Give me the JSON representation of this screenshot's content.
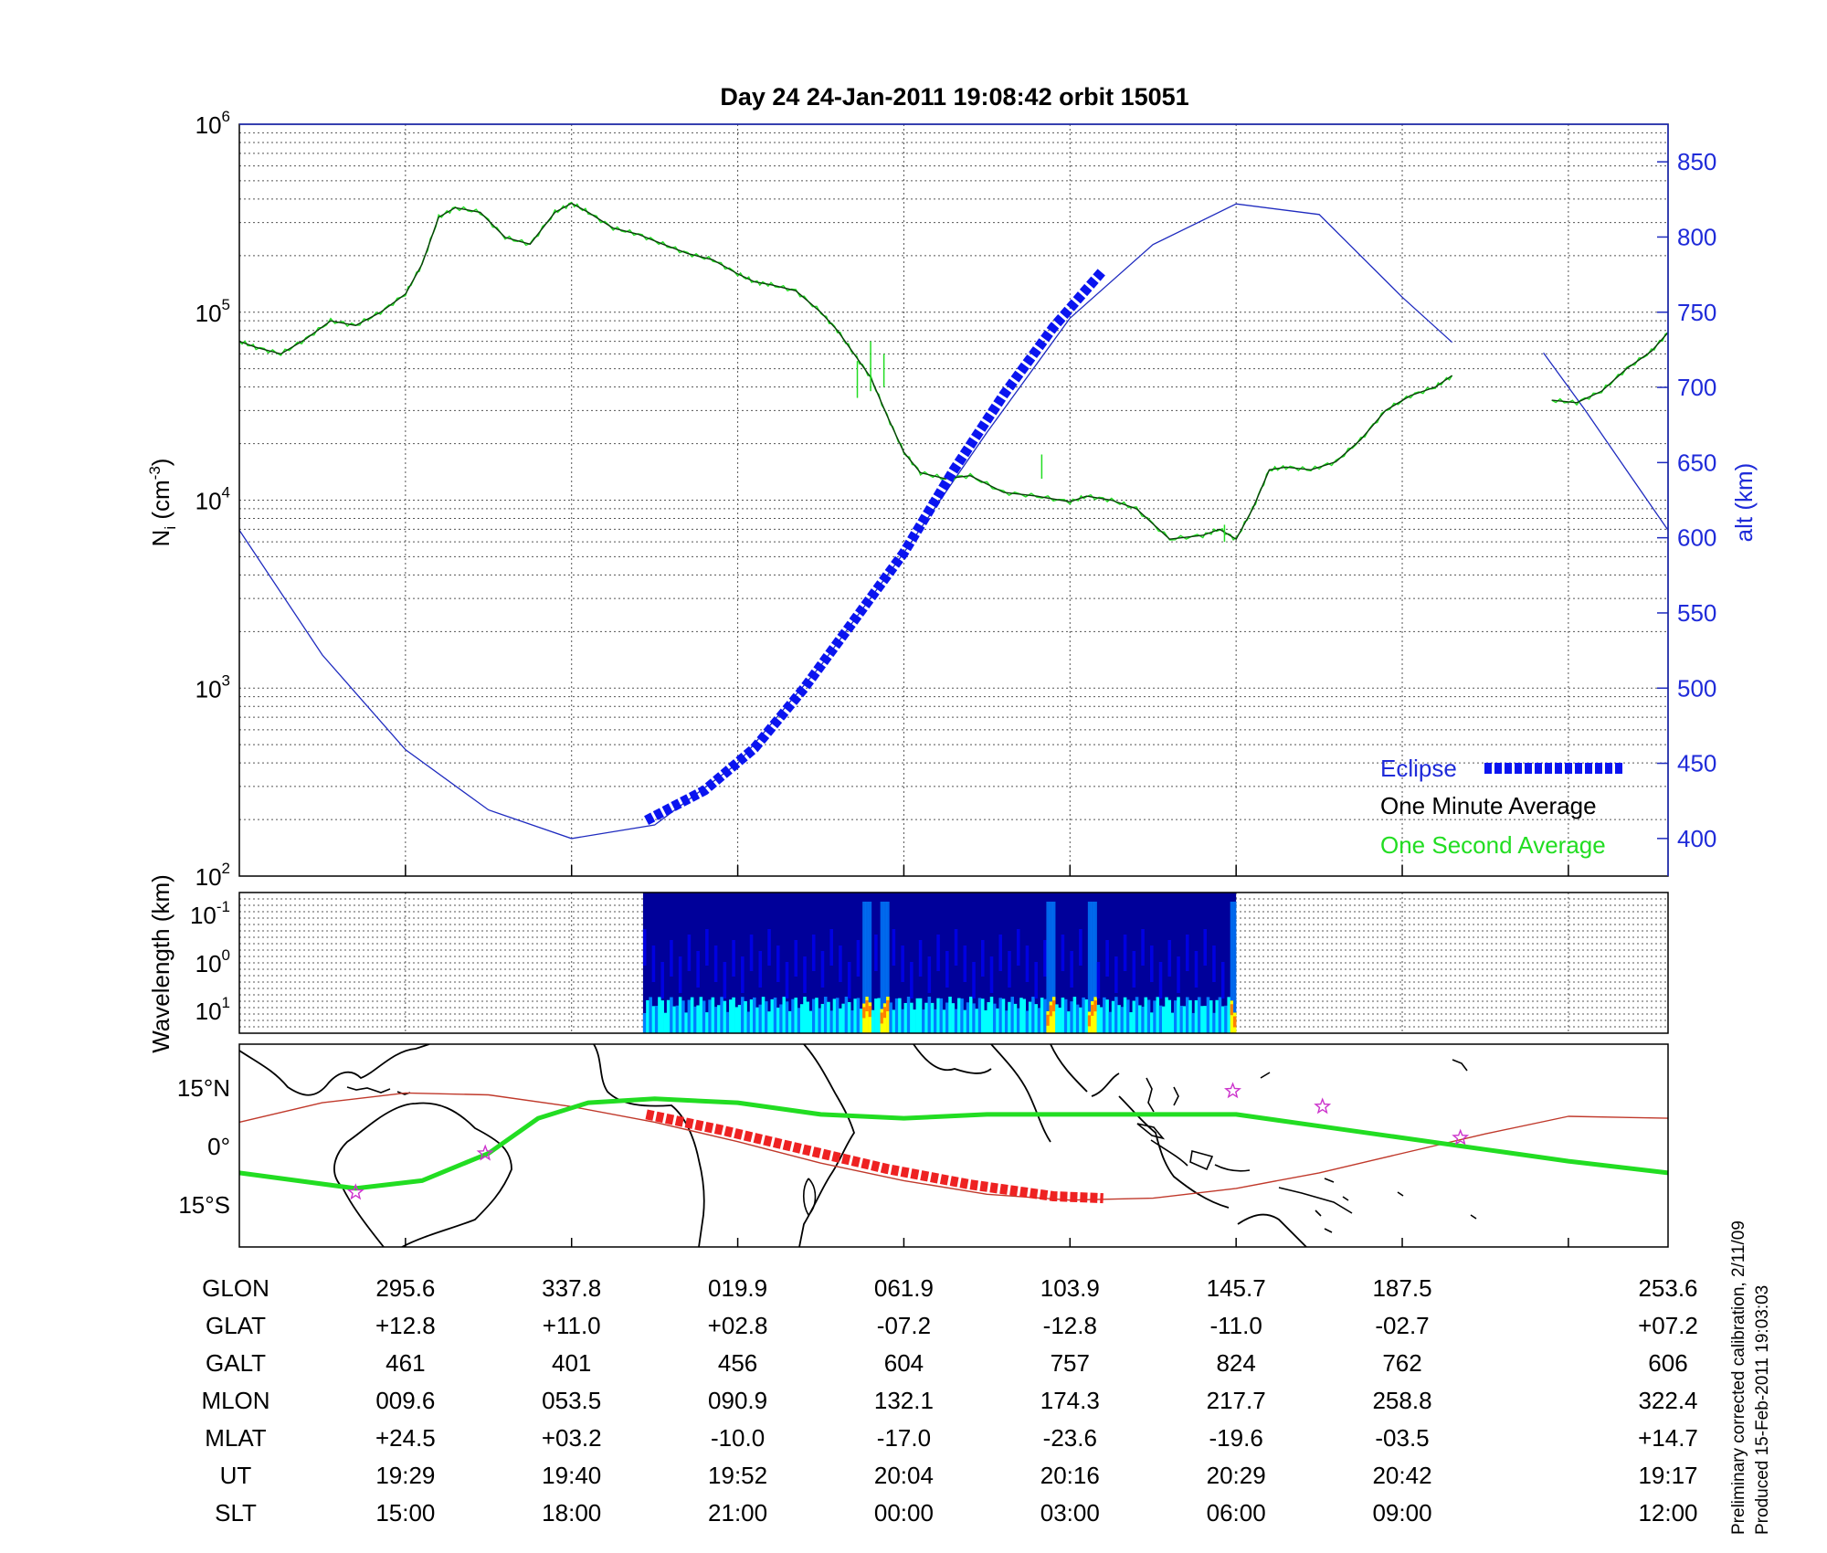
{
  "chart_data": [
    {
      "type": "line",
      "title": "Day 24  24-Jan-2011 19:08:42   orbit 15051",
      "ylabel": "N",
      "ylabel_sub": "i",
      "ylabel_unit": "(cm",
      "ylabel_unit_sup": "-3",
      "ylabel_unit_close": ")",
      "y2label": "alt (km)",
      "yscale": "log",
      "ylim": [
        100,
        1000000
      ],
      "yticks": [
        {
          "base": "10",
          "exp": "2"
        },
        {
          "base": "10",
          "exp": "3"
        },
        {
          "base": "10",
          "exp": "4"
        },
        {
          "base": "10",
          "exp": "5"
        },
        {
          "base": "10",
          "exp": "6"
        }
      ],
      "y2lim": [
        375,
        875
      ],
      "y2ticks": [
        "400",
        "450",
        "500",
        "550",
        "600",
        "650",
        "700",
        "750",
        "800",
        "850"
      ],
      "xlim": [
        0,
        8.6
      ],
      "grid": true,
      "legend": {
        "placement": "bottom-right",
        "entries": [
          "Eclipse",
          "One Minute Average",
          "One Second Average"
        ]
      },
      "colors": {
        "eclipse": "#0a14f0",
        "minute": "#0b3d0b",
        "second": "#22dd22",
        "altitude": "#1f2bbf"
      },
      "series": [
        {
          "name": "One Minute Average",
          "x": [
            0,
            0.1,
            0.25,
            0.4,
            0.55,
            0.7,
            0.85,
            1.0,
            1.1,
            1.2,
            1.3,
            1.45,
            1.6,
            1.75,
            1.9,
            2.0,
            2.1,
            2.25,
            2.4,
            2.55,
            2.7,
            2.85,
            3.0,
            3.1,
            3.2,
            3.35,
            3.5,
            3.6,
            3.7,
            3.8,
            3.9,
            4.0,
            4.1,
            4.25,
            4.4,
            4.6,
            4.8,
            5.0,
            5.1,
            5.25,
            5.4,
            5.6,
            5.8,
            5.9,
            6.0,
            6.1,
            6.2,
            6.3,
            6.45,
            6.6,
            6.75,
            6.9,
            7.05,
            7.2,
            7.3
          ],
          "y": [
            70000,
            65000,
            60000,
            72000,
            90000,
            85000,
            100000,
            125000,
            180000,
            320000,
            360000,
            340000,
            250000,
            230000,
            340000,
            380000,
            340000,
            280000,
            260000,
            230000,
            205000,
            190000,
            160000,
            145000,
            140000,
            130000,
            100000,
            80000,
            60000,
            45000,
            28000,
            18000,
            14000,
            13000,
            13500,
            11000,
            10500,
            9800,
            10500,
            10000,
            9000,
            6200,
            6500,
            7000,
            6200,
            9000,
            14500,
            15000,
            14500,
            16000,
            21000,
            30000,
            36000,
            40000,
            46000
          ]
        },
        {
          "name": "One Minute Average",
          "x": [
            7.9,
            8.05,
            8.2,
            8.35,
            8.5,
            8.6
          ],
          "y": [
            34000,
            33000,
            38000,
            50000,
            62000,
            78000
          ]
        },
        {
          "name": "altitude",
          "x": [
            0,
            0.5,
            1.0,
            1.5,
            2.0,
            2.5,
            3.0,
            3.5,
            4.0,
            4.5,
            5.0,
            5.5,
            6.0,
            6.5,
            7.0,
            7.3
          ],
          "y": [
            605,
            522,
            459,
            419,
            400,
            409,
            450,
            515,
            590,
            670,
            746,
            795,
            822,
            815,
            760,
            730
          ]
        },
        {
          "name": "altitude",
          "x": [
            7.85,
            8.1,
            8.35,
            8.6
          ],
          "y": [
            723,
            685,
            645,
            605
          ]
        },
        {
          "name": "Eclipse",
          "x": [
            2.45,
            2.8,
            3.1,
            3.4,
            3.7,
            4.0,
            4.3,
            4.6,
            4.9,
            5.2
          ],
          "y": [
            412,
            432,
            460,
            500,
            545,
            590,
            645,
            695,
            740,
            778
          ]
        }
      ]
    },
    {
      "type": "heatmap",
      "ylabel": "Wavelength (km)",
      "yticks": [
        {
          "base": "10",
          "exp": "-1"
        },
        {
          "base": "10",
          "exp": "0"
        },
        {
          "base": "10",
          "exp": "1"
        }
      ],
      "x_range": [
        2.43,
        6.0
      ],
      "colormap": [
        "#00008f",
        "#0000ff",
        "#0080ff",
        "#00ffff",
        "#ffff00",
        "#ff8000"
      ]
    },
    {
      "type": "line",
      "yticks": [
        "15°N",
        "0°",
        "15°S"
      ],
      "series": [
        {
          "name": "track",
          "x": [
            0,
            0.5,
            1.0,
            1.5,
            2.0,
            2.5,
            3.0,
            3.5,
            4.0,
            4.5,
            5.0,
            5.5,
            6.0,
            6.5,
            7.0,
            7.5,
            8.0,
            8.6
          ],
          "y": [
            6,
            11,
            13.5,
            13,
            10,
            6,
            1,
            -4.5,
            -9,
            -12.5,
            -14,
            -13.5,
            -11,
            -7,
            -2,
            3,
            7.5,
            7
          ]
        },
        {
          "name": "footprint",
          "x": [
            0,
            0.7,
            1.1,
            1.5,
            1.8,
            2.1,
            2.5,
            3.0,
            3.5,
            4.0,
            4.5,
            5.0,
            5.5,
            6.0,
            6.5,
            7.0,
            7.5,
            8.0,
            8.6
          ],
          "y": [
            -7,
            -11,
            -9,
            -2,
            7,
            11,
            12,
            11,
            8,
            7,
            8,
            8,
            8,
            8,
            5,
            2,
            -1,
            -4,
            -7
          ]
        },
        {
          "name": "Eclipse",
          "x": [
            2.45,
            2.9,
            3.4,
            3.9,
            4.4,
            4.9,
            5.2
          ],
          "y": [
            8,
            4,
            -1,
            -6,
            -10,
            -13,
            -13.5
          ]
        }
      ],
      "stars": [
        {
          "x": 0.7,
          "y": -12
        },
        {
          "x": 1.48,
          "y": -2
        },
        {
          "x": 5.98,
          "y": 14
        },
        {
          "x": 6.52,
          "y": 10
        },
        {
          "x": 7.35,
          "y": 2
        }
      ]
    }
  ],
  "table": {
    "row_labels": [
      "GLON",
      "GLAT",
      "GALT",
      "MLON",
      "MLAT",
      "UT",
      "SLT"
    ],
    "columns": [
      [
        "295.6",
        "+12.8",
        "461",
        "009.6",
        "+24.5",
        "19:29",
        "15:00"
      ],
      [
        "337.8",
        "+11.0",
        "401",
        "053.5",
        "+03.2",
        "19:40",
        "18:00"
      ],
      [
        "019.9",
        "+02.8",
        "456",
        "090.9",
        "-10.0",
        "19:52",
        "21:00"
      ],
      [
        "061.9",
        "-07.2",
        "604",
        "132.1",
        "-17.0",
        "20:04",
        "00:00"
      ],
      [
        "103.9",
        "-12.8",
        "757",
        "174.3",
        "-23.6",
        "20:16",
        "03:00"
      ],
      [
        "145.7",
        "-11.0",
        "824",
        "217.7",
        "-19.6",
        "20:29",
        "06:00"
      ],
      [
        "187.5",
        "-02.7",
        "762",
        "258.8",
        "-03.5",
        "20:42",
        "09:00"
      ],
      [
        "253.6",
        "+07.2",
        "606",
        "322.4",
        "+14.7",
        "19:17",
        "12:00"
      ]
    ]
  },
  "footer": {
    "line1": "Preliminary corrected calibration, 2/11/09",
    "line2": "Produced 15-Feb-2011 19:03:03"
  }
}
